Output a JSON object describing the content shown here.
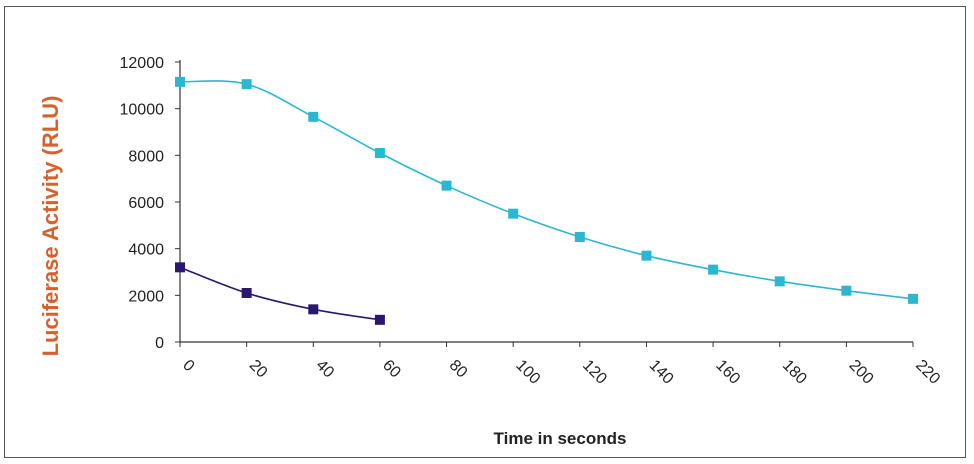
{
  "chart_data": {
    "type": "line",
    "xlabel": "Time in seconds",
    "ylabel": "Luciferase Activity (RLU)",
    "xlim": [
      0,
      220
    ],
    "ylim": [
      0,
      12000
    ],
    "x_ticks": [
      0,
      20,
      40,
      60,
      80,
      100,
      120,
      140,
      160,
      180,
      200,
      220
    ],
    "y_ticks": [
      0,
      2000,
      4000,
      6000,
      8000,
      10000,
      12000
    ],
    "grid": false,
    "legend": "none",
    "series": [
      {
        "color": "#2bb7cf",
        "marker": "square",
        "x": [
          0,
          20,
          40,
          60,
          80,
          100,
          120,
          140,
          160,
          180,
          200,
          220
        ],
        "y": [
          11150,
          11050,
          9650,
          8100,
          6700,
          5500,
          4500,
          3700,
          3100,
          2600,
          2200,
          1850
        ]
      },
      {
        "color": "#2a1870",
        "marker": "square",
        "x": [
          0,
          20,
          40,
          60
        ],
        "y": [
          3200,
          2100,
          1400,
          950
        ]
      }
    ]
  },
  "colors": {
    "ylabel": "#d9602a",
    "axis": "#333333"
  }
}
